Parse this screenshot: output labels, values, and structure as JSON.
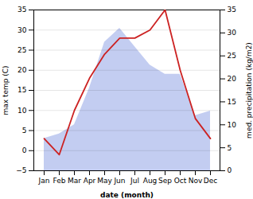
{
  "chart_data": {
    "type": "line",
    "categories": [
      "Jan",
      "Feb",
      "Mar",
      "Apr",
      "May",
      "Jun",
      "Jul",
      "Aug",
      "Sep",
      "Oct",
      "Nov",
      "Dec"
    ],
    "series": [
      {
        "type": "area",
        "axis": "y2",
        "color": "#b8c4ee",
        "values": [
          7,
          8,
          10,
          18,
          28,
          31,
          27,
          23,
          21,
          21,
          12,
          13
        ]
      },
      {
        "type": "line",
        "color": "#cc2222",
        "values": [
          3,
          -1,
          10,
          18,
          24,
          28,
          28,
          30,
          35,
          20,
          8,
          3
        ]
      }
    ],
    "xlabel": "date (month)",
    "ylabel": "max temp (C)",
    "y2label": "med. precipitation (kg/m2)",
    "ylim": [
      -5,
      35
    ],
    "yticks": [
      -5,
      0,
      5,
      10,
      15,
      20,
      25,
      30,
      35
    ],
    "y2lim": [
      0,
      35
    ],
    "y2ticks": [
      0,
      5,
      10,
      15,
      20,
      25,
      30,
      35
    ],
    "grid": true
  }
}
